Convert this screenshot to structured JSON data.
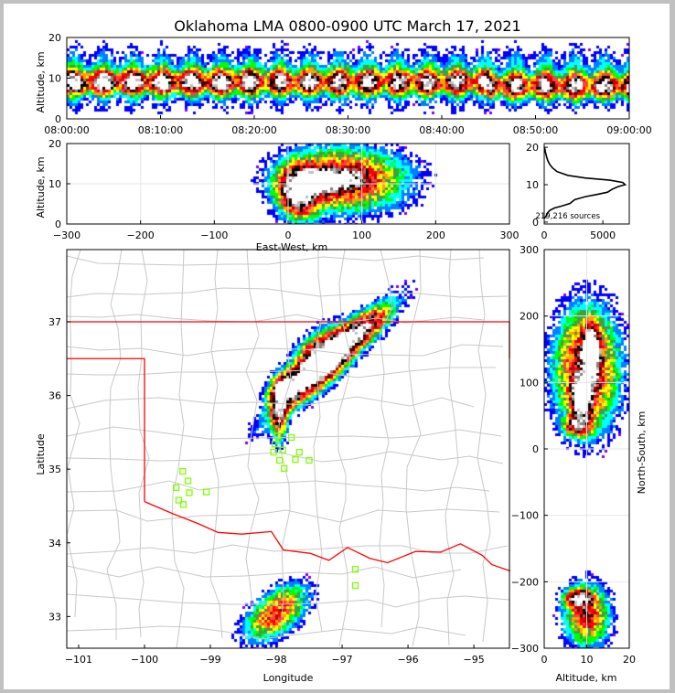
{
  "chart_data": [
    {
      "id": "time_height",
      "type": "heatmap",
      "title": "Oklahoma LMA 0800-0900 UTC March 17, 2021",
      "xlabel": "",
      "ylabel": "Altitude, km",
      "xlim_minutes": [
        0,
        60
      ],
      "xticklabels": [
        "08:00:00",
        "08:10:00",
        "08:20:00",
        "08:30:00",
        "08:40:00",
        "08:50:00",
        "09:00:00"
      ],
      "ylim": [
        0,
        20
      ],
      "yticks": [
        0,
        10,
        20
      ],
      "band": {
        "alt_min": 1,
        "alt_max": 20,
        "core_alt": 9,
        "core_spread": 1.8
      }
    },
    {
      "id": "ew_altitude",
      "type": "heatmap",
      "xlabel": "East-West, km",
      "ylabel": "Altitude, km",
      "xlim": [
        -300,
        300
      ],
      "xticks": [
        -300,
        -200,
        -100,
        0,
        100,
        200,
        300
      ],
      "ylim": [
        0,
        20
      ],
      "yticks": [
        0,
        10,
        20
      ],
      "grid": true,
      "clusters": [
        {
          "x": 75,
          "y": 11,
          "sx": 55,
          "sy": 5,
          "w": 1.0
        },
        {
          "x": 15,
          "y": 8,
          "sx": 18,
          "sy": 4,
          "w": 1.3
        },
        {
          "x": 55,
          "y": 11,
          "sx": 25,
          "sy": 1.5,
          "w": 1.2
        }
      ]
    },
    {
      "id": "altitude_histogram",
      "type": "line",
      "xlim": [
        0,
        7250
      ],
      "xticks": [
        0,
        5000
      ],
      "ylim": [
        -0.5,
        21
      ],
      "yticks": [
        0,
        10,
        20
      ],
      "annotation": "219,216 sources",
      "points": [
        [
          0,
          1
        ],
        [
          150,
          1.5
        ],
        [
          300,
          2.5
        ],
        [
          500,
          3.2
        ],
        [
          900,
          3.8
        ],
        [
          1500,
          4.3
        ],
        [
          2200,
          5
        ],
        [
          2600,
          6
        ],
        [
          3500,
          6.8
        ],
        [
          4500,
          7.4
        ],
        [
          5400,
          8
        ],
        [
          5800,
          8.8
        ],
        [
          6300,
          9.5
        ],
        [
          6900,
          10
        ],
        [
          6700,
          10.6
        ],
        [
          5600,
          11.2
        ],
        [
          3500,
          11.8
        ],
        [
          2000,
          12.5
        ],
        [
          1100,
          13.5
        ],
        [
          700,
          14.5
        ],
        [
          450,
          15.5
        ],
        [
          300,
          16.5
        ],
        [
          200,
          17.5
        ],
        [
          120,
          18.5
        ],
        [
          60,
          19.5
        ],
        [
          0,
          20
        ]
      ]
    },
    {
      "id": "plan_view",
      "type": "heatmap",
      "xlabel": "Longitude",
      "ylabel": "Latitude",
      "xlim": [
        -101.18,
        -94.46
      ],
      "xticks": [
        -101,
        -100,
        -99,
        -98,
        -97,
        -96,
        -95
      ],
      "ylim": [
        32.57,
        37.98
      ],
      "yticks": [
        33,
        34,
        35,
        36,
        37
      ],
      "clusters": [
        {
          "x": -97.2,
          "y": 36.45,
          "sx": 0.75,
          "sy": 0.13,
          "rot": 40,
          "w": 1.0
        },
        {
          "x": -97.35,
          "y": 36.5,
          "sx": 0.3,
          "sy": 0.18,
          "rot": 40,
          "w": 1.4
        },
        {
          "x": -97.85,
          "y": 36.1,
          "sx": 0.18,
          "sy": 0.12,
          "rot": 30,
          "w": 1.4
        },
        {
          "x": -97.95,
          "y": 35.75,
          "sx": 0.08,
          "sy": 0.25,
          "rot": 0,
          "w": 0.9
        },
        {
          "x": -96.8,
          "y": 36.85,
          "sx": 0.35,
          "sy": 0.12,
          "rot": 30,
          "w": 0.8
        },
        {
          "x": -98.0,
          "y": 33.05,
          "sx": 0.35,
          "sy": 0.18,
          "rot": 35,
          "w": 0.8
        }
      ],
      "stations": [
        [
          -99.42,
          34.97
        ],
        [
          -99.34,
          34.84
        ],
        [
          -99.52,
          34.75
        ],
        [
          -99.32,
          34.68
        ],
        [
          -99.48,
          34.58
        ],
        [
          -99.41,
          34.52
        ],
        [
          -99.06,
          34.69
        ],
        [
          -97.98,
          35.45
        ],
        [
          -97.77,
          35.43
        ],
        [
          -98.02,
          35.34
        ],
        [
          -98.04,
          35.23
        ],
        [
          -97.9,
          35.26
        ],
        [
          -97.65,
          35.23
        ],
        [
          -97.95,
          35.12
        ],
        [
          -97.71,
          35.13
        ],
        [
          -97.88,
          35.01
        ],
        [
          -97.5,
          35.12
        ],
        [
          -96.8,
          33.64
        ],
        [
          -96.8,
          33.42
        ]
      ]
    },
    {
      "id": "ns_altitude",
      "type": "heatmap",
      "xlabel": "Altitude, km",
      "ylabel": "North-South, km",
      "xlim": [
        0,
        20
      ],
      "xticks": [
        0,
        10,
        20
      ],
      "ylim": [
        -300,
        300
      ],
      "yticks": [
        -300,
        -200,
        -100,
        0,
        100,
        200,
        300
      ],
      "grid": true,
      "clusters": [
        {
          "x": 10,
          "y": 120,
          "sx": 5,
          "sy": 60,
          "w": 1.0
        },
        {
          "x": 11,
          "y": 145,
          "sx": 1.2,
          "sy": 25,
          "w": 1.5
        },
        {
          "x": 9,
          "y": 80,
          "sx": 1.5,
          "sy": 20,
          "w": 1.4
        },
        {
          "x": 8,
          "y": 35,
          "sx": 2,
          "sy": 10,
          "w": 1.0
        },
        {
          "x": 10,
          "y": -250,
          "sx": 3.5,
          "sy": 30,
          "w": 0.85
        },
        {
          "x": 8,
          "y": -225,
          "sx": 2,
          "sy": 8,
          "w": 1.1
        }
      ]
    }
  ],
  "colors": {
    "border": "#ff0000",
    "county": "#c8c8c8",
    "station": "#80ff00"
  }
}
